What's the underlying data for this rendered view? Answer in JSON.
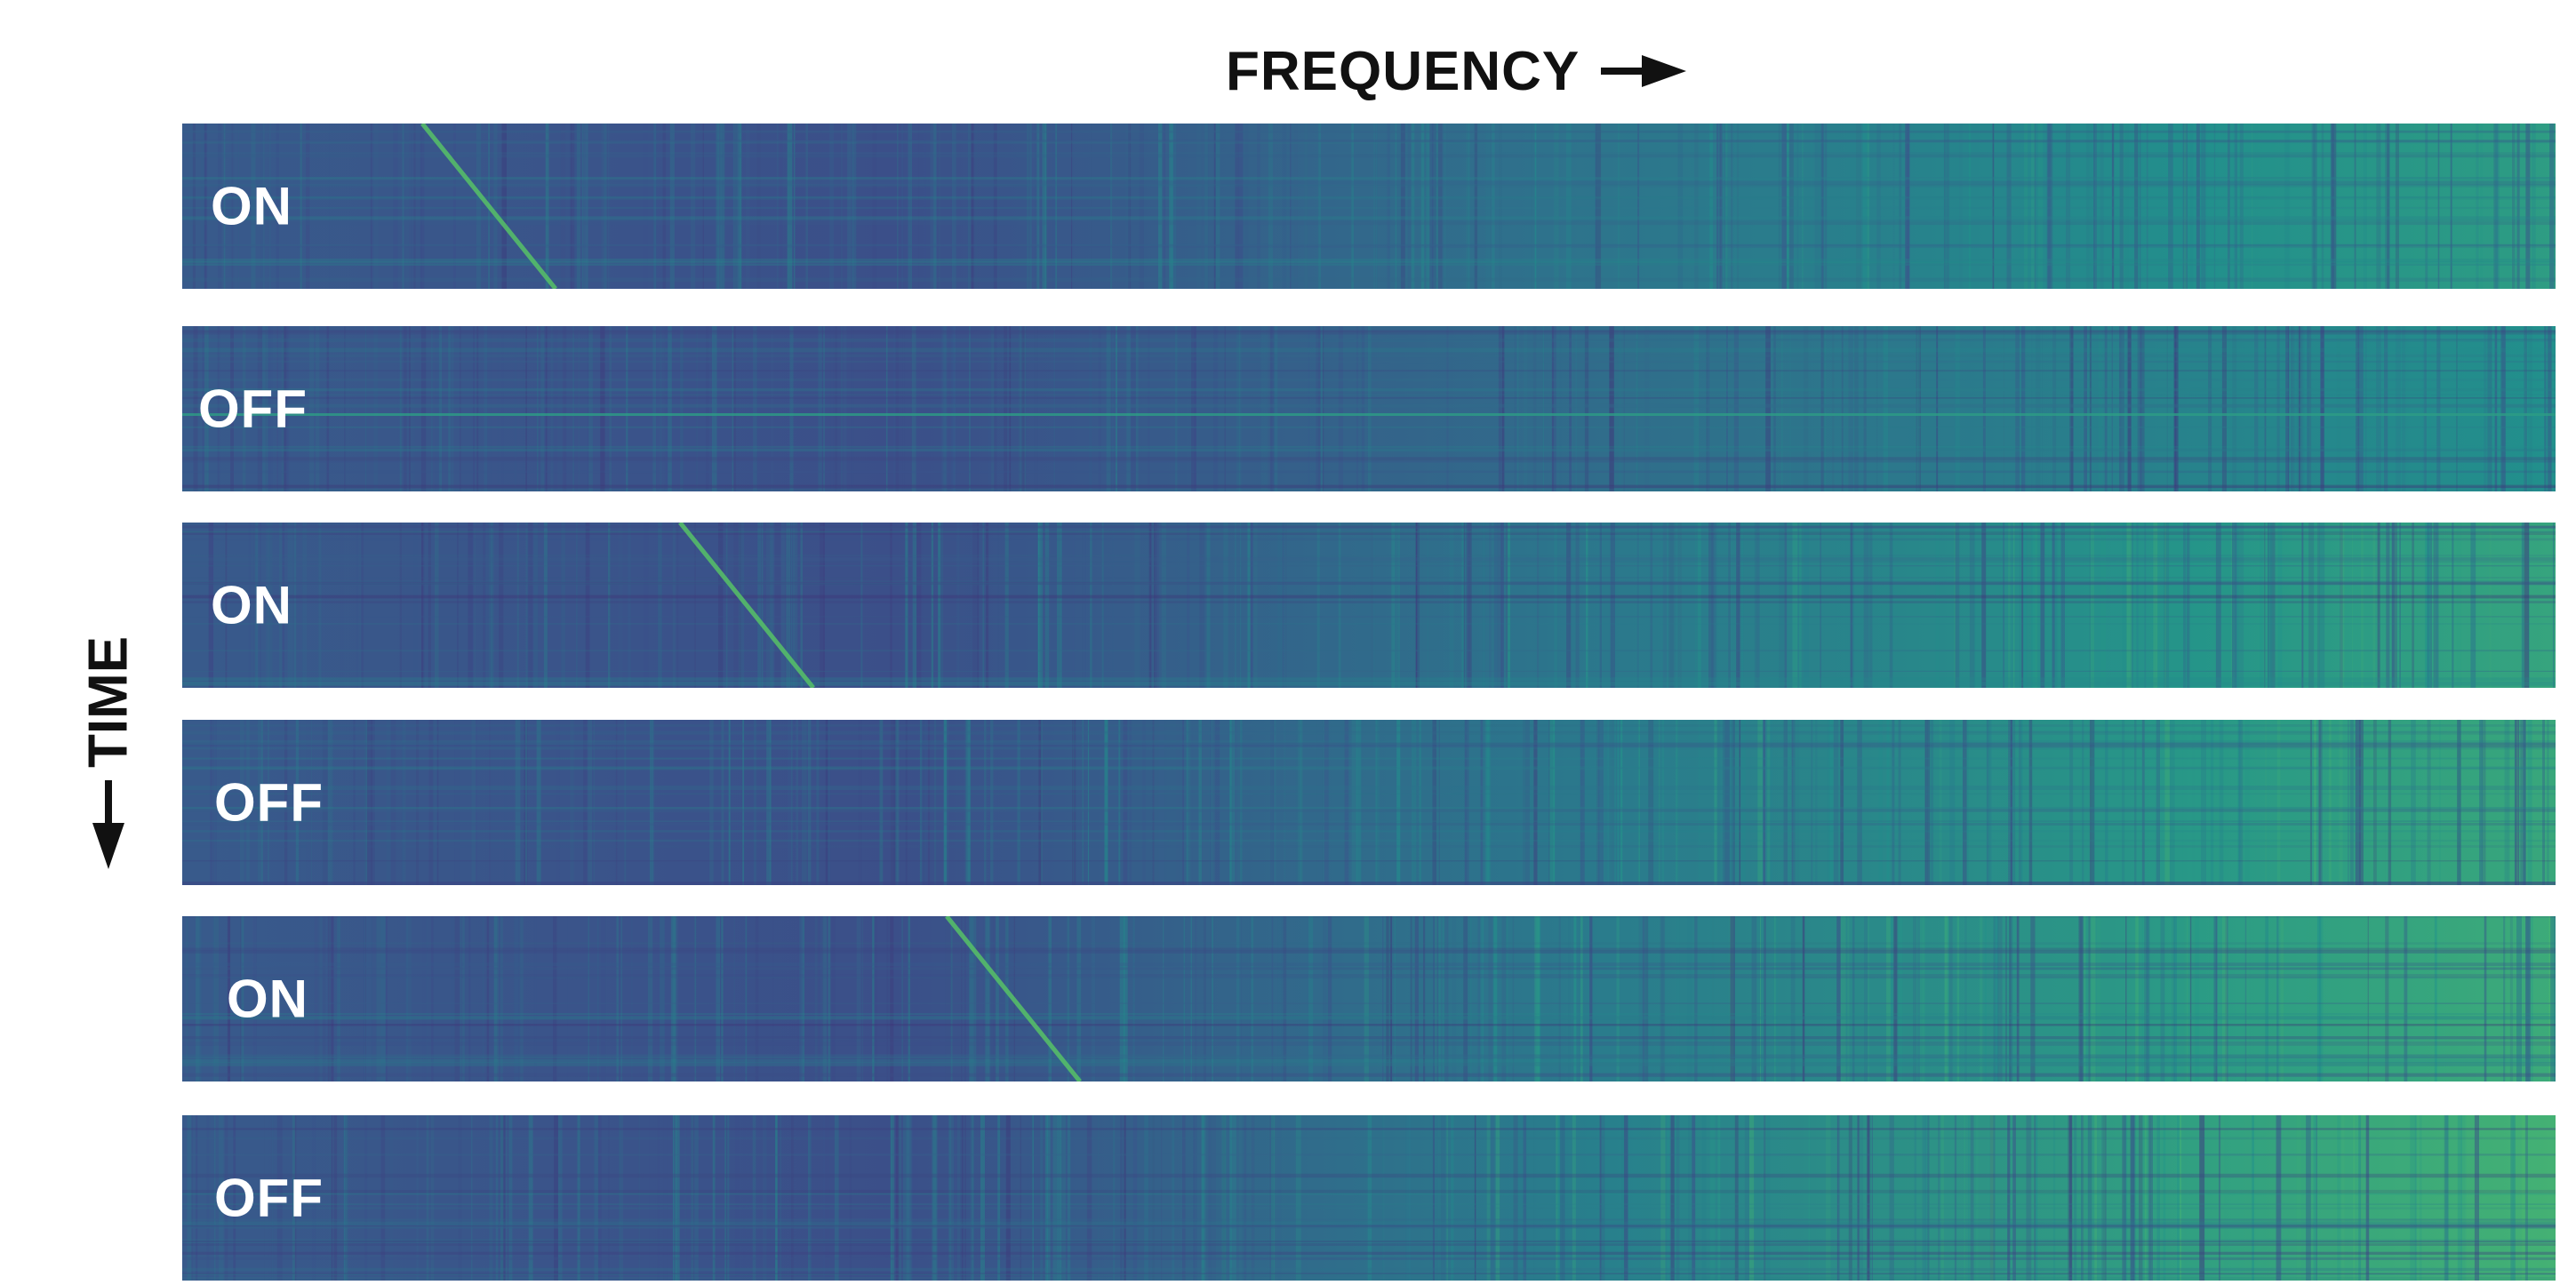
{
  "axes": {
    "frequency_label": "FREQUENCY",
    "time_label": "TIME"
  },
  "panels": [
    {
      "label": "ON",
      "drifting_signal": true
    },
    {
      "label": "OFF",
      "drifting_signal": false
    },
    {
      "label": "ON",
      "drifting_signal": true
    },
    {
      "label": "OFF",
      "drifting_signal": false
    },
    {
      "label": "ON",
      "drifting_signal": true
    },
    {
      "label": "OFF",
      "drifting_signal": false
    }
  ],
  "colors": {
    "colormap": "viridis",
    "background_low": "#3a2e7a",
    "background_mid": "#31688e",
    "high": "#c8e34a",
    "label_text": "#ffffff",
    "axis_text": "#111111"
  }
}
